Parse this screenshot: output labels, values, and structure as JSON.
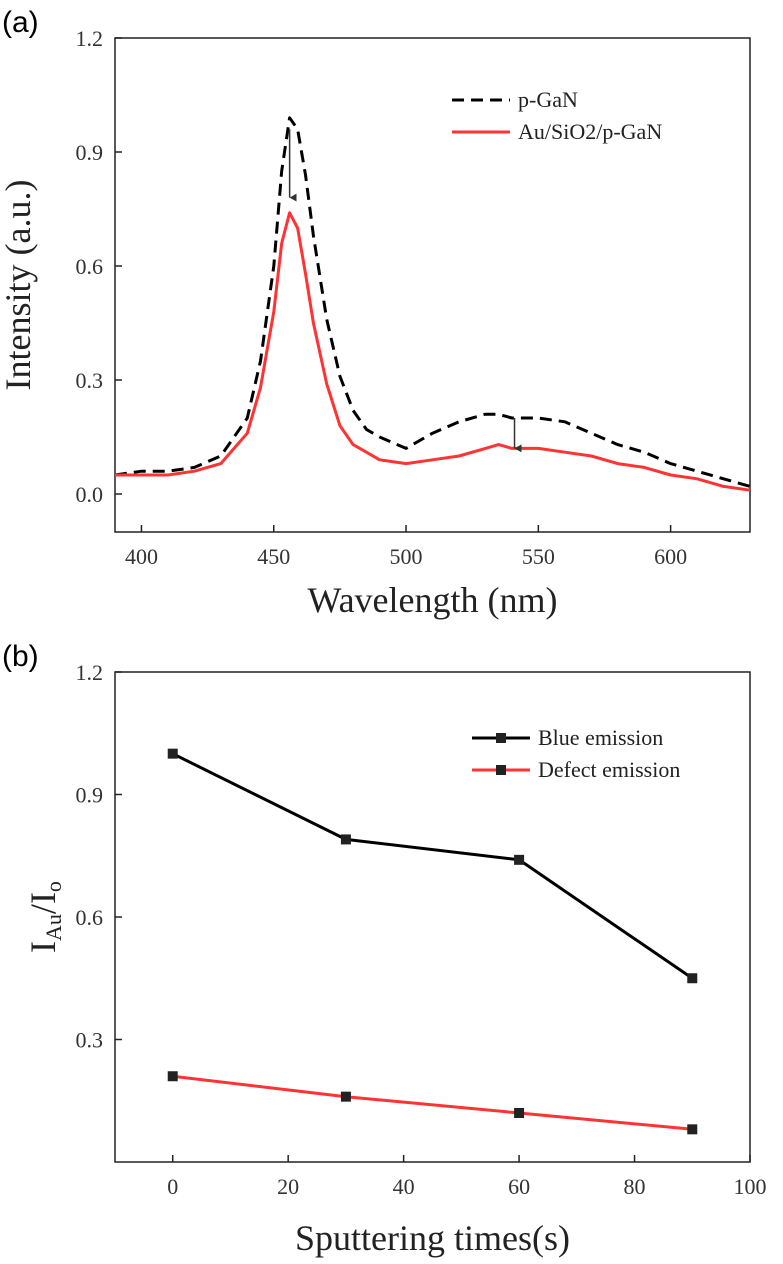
{
  "chart_data": [
    {
      "panel": "(a)",
      "type": "line",
      "xlabel": "Wavelength (nm)",
      "ylabel": "Intensity (a.u.)",
      "xlim": [
        390,
        630
      ],
      "ylim": [
        -0.1,
        1.2
      ],
      "xticks": [
        400,
        450,
        500,
        550,
        600
      ],
      "yticks": [
        0.0,
        0.3,
        0.6,
        0.9,
        1.2
      ],
      "ytick_labels": [
        "0.0",
        "0.3",
        "0.6",
        "0.9",
        "1.2"
      ],
      "legend_position": "top-right",
      "series": [
        {
          "name": "p-GaN",
          "color": "#000000",
          "style": "dashed",
          "x": [
            390,
            400,
            410,
            420,
            430,
            440,
            445,
            450,
            453,
            456,
            459,
            462,
            465,
            470,
            475,
            480,
            485,
            490,
            500,
            510,
            520,
            530,
            535,
            540,
            550,
            560,
            570,
            580,
            590,
            600,
            610,
            620,
            630
          ],
          "y": [
            0.05,
            0.06,
            0.06,
            0.07,
            0.1,
            0.2,
            0.35,
            0.6,
            0.85,
            0.99,
            0.96,
            0.84,
            0.68,
            0.46,
            0.31,
            0.22,
            0.17,
            0.15,
            0.12,
            0.16,
            0.19,
            0.21,
            0.21,
            0.2,
            0.2,
            0.19,
            0.16,
            0.13,
            0.11,
            0.08,
            0.06,
            0.04,
            0.02
          ]
        },
        {
          "name": "Au/SiO2/p-GaN",
          "color": "#ff3333",
          "style": "solid",
          "x": [
            390,
            400,
            410,
            420,
            430,
            440,
            445,
            450,
            453,
            456,
            459,
            462,
            465,
            470,
            475,
            480,
            485,
            490,
            500,
            510,
            520,
            530,
            535,
            540,
            550,
            560,
            570,
            580,
            590,
            600,
            610,
            620,
            630
          ],
          "y": [
            0.05,
            0.05,
            0.05,
            0.06,
            0.08,
            0.16,
            0.28,
            0.48,
            0.66,
            0.74,
            0.7,
            0.58,
            0.45,
            0.29,
            0.18,
            0.13,
            0.11,
            0.09,
            0.08,
            0.09,
            0.1,
            0.12,
            0.13,
            0.12,
            0.12,
            0.11,
            0.1,
            0.08,
            0.07,
            0.05,
            0.04,
            0.02,
            0.01
          ]
        }
      ],
      "annotations": [
        {
          "type": "arrow",
          "x": 456,
          "y_from": 0.96,
          "y_to": 0.78
        },
        {
          "type": "arrow",
          "x": 541,
          "y_from": 0.2,
          "y_to": 0.12
        }
      ]
    },
    {
      "panel": "(b)",
      "type": "line",
      "xlabel": "Sputtering times(s)",
      "ylabel": "I_Au/I_o",
      "ylabel_main": "I",
      "ylabel_sub1": "Au",
      "ylabel_mid": "/I",
      "ylabel_sub2": "o",
      "xlim": [
        -10,
        100
      ],
      "ylim": [
        0.0,
        1.2
      ],
      "xticks": [
        0,
        20,
        40,
        60,
        80,
        100
      ],
      "yticks": [
        0.3,
        0.6,
        0.9,
        1.2
      ],
      "ytick_labels": [
        "0.3",
        "0.6",
        "0.9",
        "1.2"
      ],
      "legend_position": "top-right",
      "markers": "square",
      "series": [
        {
          "name": "Blue emission",
          "color": "#000000",
          "x": [
            0,
            30,
            60,
            90
          ],
          "y": [
            1.0,
            0.79,
            0.74,
            0.45
          ]
        },
        {
          "name": "Defect emission",
          "color": "#ff3333",
          "x": [
            0,
            30,
            60,
            90
          ],
          "y": [
            0.21,
            0.16,
            0.12,
            0.08
          ]
        }
      ]
    }
  ]
}
